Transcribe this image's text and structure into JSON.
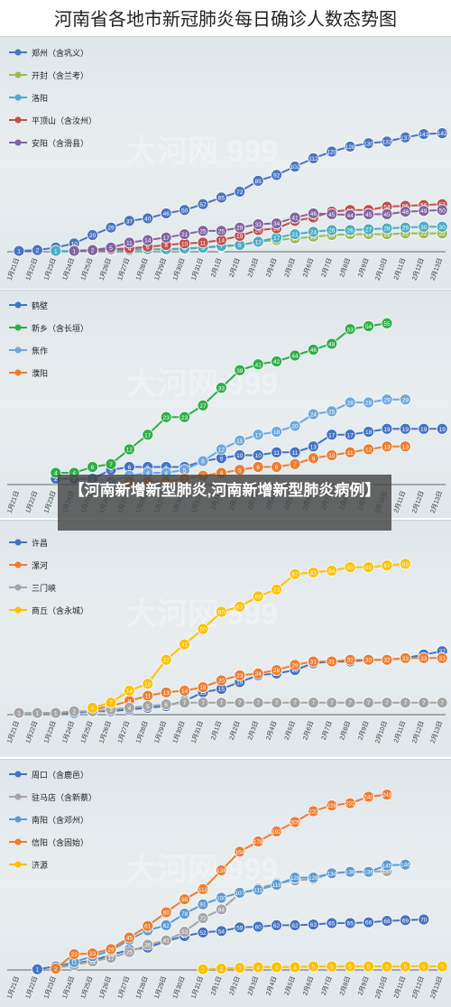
{
  "title": "河南省各地市新冠肺炎每日确诊人数态势图",
  "caption": "【河南新增新型肺炎,河南新增新型肺炎病例】",
  "watermark": "大河网 999",
  "dates": [
    "1月21日",
    "1月22日",
    "1月23日",
    "1月24日",
    "1月25日",
    "1月26日",
    "1月27日",
    "1月28日",
    "1月29日",
    "1月30日",
    "1月31日",
    "2月1日",
    "2月2日",
    "2月3日",
    "2月4日",
    "2月5日",
    "2月6日",
    "2月7日",
    "2月8日",
    "2月9日",
    "2月10日",
    "2月11日",
    "2月12日",
    "2月13日"
  ],
  "chart_data": [
    {
      "type": "line",
      "ylim": [
        0,
        160
      ],
      "series": [
        {
          "name": "郑州（含巩义）",
          "color": "#4b74c3",
          "values": [
            1,
            2,
            5,
            10,
            20,
            29,
            37,
            40,
            46,
            50,
            57,
            65,
            72,
            85,
            92,
            102,
            112,
            120,
            126,
            130,
            132,
            137,
            141,
            142
          ]
        },
        {
          "name": "开封（含兰考）",
          "color": "#9bbb59",
          "values": [
            null,
            null,
            null,
            1,
            1,
            2,
            3,
            3,
            3,
            3,
            5,
            6,
            8,
            12,
            14,
            16,
            18,
            20,
            21,
            21,
            21,
            22,
            22,
            22
          ]
        },
        {
          "name": "洛阳",
          "color": "#4bacc6",
          "values": [
            null,
            null,
            1,
            1,
            1,
            2,
            2,
            3,
            3,
            4,
            5,
            7,
            8,
            12,
            17,
            21,
            24,
            26,
            26,
            27,
            28,
            29,
            30,
            30
          ]
        },
        {
          "name": "平顶山（含汝州）",
          "color": "#c0504d",
          "values": [
            null,
            null,
            null,
            1,
            2,
            3,
            4,
            6,
            8,
            10,
            11,
            14,
            19,
            26,
            28,
            37,
            41,
            48,
            50,
            50,
            54,
            55,
            56,
            57
          ]
        },
        {
          "name": "安阳（含滑县）",
          "color": "#8064a2",
          "values": [
            null,
            null,
            null,
            1,
            2,
            5,
            11,
            14,
            17,
            21,
            25,
            25,
            29,
            33,
            34,
            41,
            46,
            45,
            44,
            45,
            45,
            48,
            49,
            50
          ]
        }
      ]
    },
    {
      "type": "line",
      "ylim": [
        0,
        60
      ],
      "series": [
        {
          "name": "鹤壁",
          "color": "#4472c4",
          "values": [
            null,
            null,
            2,
            2,
            2,
            5,
            6,
            6,
            6,
            6,
            8,
            9,
            10,
            10,
            11,
            11,
            13,
            17,
            17,
            18,
            19,
            19,
            19,
            19
          ]
        },
        {
          "name": "新乡（含长垣）",
          "color": "#2fae47",
          "values": [
            null,
            null,
            4,
            4,
            6,
            7,
            12,
            17,
            23,
            23,
            27,
            33,
            39,
            41,
            42,
            44,
            46,
            48,
            53,
            54,
            55,
            null,
            null,
            null
          ]
        },
        {
          "name": "焦作",
          "color": "#6ea8dc",
          "values": [
            null,
            null,
            null,
            null,
            null,
            1,
            3,
            4,
            4,
            5,
            8,
            12,
            15,
            17,
            18,
            20,
            24,
            25,
            28,
            28,
            29,
            29,
            null,
            null
          ]
        },
        {
          "name": "濮阳",
          "color": "#ed7d31",
          "values": [
            null,
            null,
            null,
            null,
            null,
            null,
            1,
            1,
            1,
            2,
            3,
            4,
            5,
            6,
            6,
            7,
            9,
            10,
            11,
            12,
            13,
            13,
            null,
            null
          ]
        }
      ]
    },
    {
      "type": "line",
      "ylim": [
        0,
        100
      ],
      "series": [
        {
          "name": "许昌",
          "color": "#4472c4",
          "values": [
            null,
            1,
            1,
            1,
            2,
            2,
            3,
            4,
            5,
            8,
            13,
            15,
            19,
            23,
            24,
            26,
            30,
            31,
            31,
            32,
            32,
            33,
            35,
            37
          ]
        },
        {
          "name": "漯河",
          "color": "#ed7d31",
          "values": [
            null,
            null,
            null,
            null,
            3,
            5,
            8,
            11,
            13,
            14,
            16,
            20,
            23,
            24,
            26,
            29,
            31,
            31,
            32,
            32,
            32,
            33,
            33,
            33
          ]
        },
        {
          "name": "三门峡",
          "color": "#a5a5a5",
          "values": [
            1,
            1,
            1,
            2,
            2,
            3,
            4,
            5,
            6,
            7,
            7,
            7,
            7,
            7,
            7,
            7,
            7,
            7,
            7,
            7,
            7,
            7,
            7,
            7
          ]
        },
        {
          "name": "商丘（含永城）",
          "color": "#ffc000",
          "values": [
            null,
            null,
            null,
            null,
            4,
            7,
            14,
            18,
            32,
            41,
            50,
            60,
            63,
            69,
            73,
            82,
            83,
            84,
            86,
            86,
            87,
            88,
            null,
            null
          ]
        }
      ]
    },
    {
      "type": "line",
      "ylim": [
        0,
        260
      ],
      "series": [
        {
          "name": "周口（含鹿邑）",
          "color": "#4472c4",
          "values": [
            null,
            1,
            5,
            9,
            13,
            21,
            28,
            31,
            40,
            47,
            52,
            54,
            59,
            60,
            62,
            62,
            63,
            65,
            65,
            66,
            68,
            69,
            70,
            null
          ]
        },
        {
          "name": "驻马店（含新蔡）",
          "color": "#a5a5a5",
          "values": [
            null,
            null,
            3,
            7,
            12,
            17,
            25,
            35,
            41,
            53,
            72,
            84,
            106,
            113,
            120,
            124,
            126,
            134,
            136,
            136,
            137,
            null,
            null,
            null
          ]
        },
        {
          "name": "南阳（含邓州）",
          "color": "#5b9bd5",
          "values": [
            null,
            null,
            5,
            11,
            19,
            27,
            42,
            55,
            62,
            78,
            91,
            100,
            107,
            111,
            118,
            128,
            128,
            134,
            136,
            136,
            145,
            146,
            null,
            null
          ]
        },
        {
          "name": "信阳（含固始）",
          "color": "#ed7d31",
          "values": [
            null,
            null,
            2,
            22,
            23,
            29,
            45,
            61,
            80,
            98,
            112,
            138,
            164,
            178,
            192,
            205,
            220,
            228,
            231,
            240,
            243,
            null,
            null,
            null
          ]
        },
        {
          "name": "济源",
          "color": "#ffc000",
          "values": [
            null,
            null,
            null,
            null,
            null,
            null,
            null,
            null,
            null,
            null,
            1,
            2,
            3,
            4,
            4,
            4,
            5,
            5,
            5,
            5,
            5,
            5,
            5,
            5
          ]
        }
      ]
    }
  ]
}
